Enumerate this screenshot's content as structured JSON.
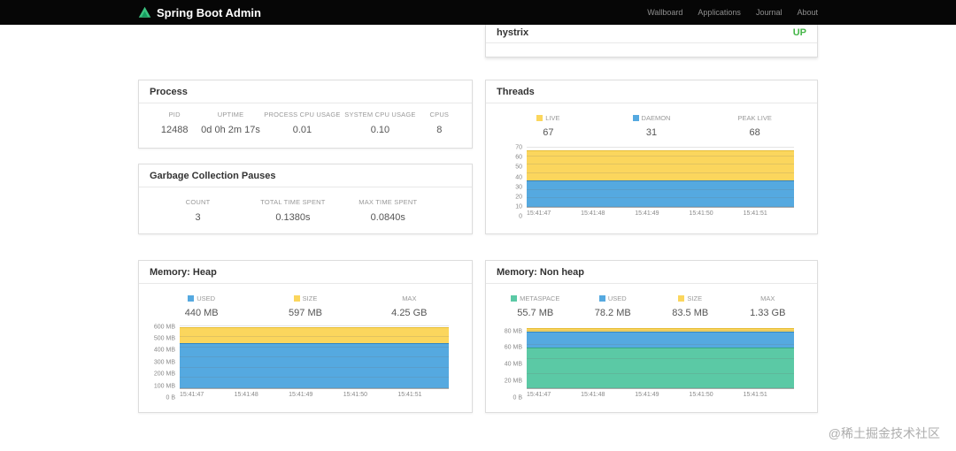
{
  "navbar": {
    "brand": "Spring Boot Admin",
    "links": [
      "Wallboard",
      "Applications",
      "Journal",
      "About"
    ]
  },
  "application_row": {
    "name": "hystrix",
    "status": "UP",
    "status_color": "#45b649"
  },
  "process": {
    "title": "Process",
    "stats": [
      {
        "label": "PID",
        "value": "12488"
      },
      {
        "label": "UPTIME",
        "value": "0d 0h 2m 17s"
      },
      {
        "label": "PROCESS CPU USAGE",
        "value": "0.01"
      },
      {
        "label": "SYSTEM CPU USAGE",
        "value": "0.10"
      },
      {
        "label": "CPUS",
        "value": "8"
      }
    ]
  },
  "gc": {
    "title": "Garbage Collection Pauses",
    "stats": [
      {
        "label": "COUNT",
        "value": "3"
      },
      {
        "label": "TOTAL TIME SPENT",
        "value": "0.1380s"
      },
      {
        "label": "MAX TIME SPENT",
        "value": "0.0840s"
      }
    ]
  },
  "threads": {
    "title": "Threads",
    "legend": [
      {
        "label": "LIVE",
        "value": "67",
        "color": "#fbd65d"
      },
      {
        "label": "DAEMON",
        "value": "31",
        "color": "#55a9e0"
      },
      {
        "label": "PEAK LIVE",
        "value": "68"
      }
    ]
  },
  "heap": {
    "title": "Memory: Heap",
    "legend": [
      {
        "label": "USED",
        "value": "440 MB",
        "color": "#55a9e0"
      },
      {
        "label": "SIZE",
        "value": "597 MB",
        "color": "#fbd65d"
      },
      {
        "label": "MAX",
        "value": "4.25 GB"
      }
    ]
  },
  "nonheap": {
    "title": "Memory: Non heap",
    "legend": [
      {
        "label": "METASPACE",
        "value": "55.7 MB",
        "color": "#5bc9a5"
      },
      {
        "label": "USED",
        "value": "78.2 MB",
        "color": "#55a9e0"
      },
      {
        "label": "SIZE",
        "value": "83.5 MB",
        "color": "#fbd65d"
      },
      {
        "label": "MAX",
        "value": "1.33 GB"
      }
    ]
  },
  "watermark": "@稀土掘金技术社区",
  "chart_data": [
    {
      "id": "threads",
      "type": "area",
      "title": "Threads",
      "x": [
        "15:41:47",
        "15:41:48",
        "15:41:49",
        "15:41:50",
        "15:41:51"
      ],
      "series": [
        {
          "name": "LIVE",
          "color": "#fbd65d",
          "line": "#e6bd37",
          "values": [
            67,
            67,
            67,
            67,
            67
          ]
        },
        {
          "name": "DAEMON",
          "color": "#55a9e0",
          "line": "#3186c2",
          "values": [
            31,
            31,
            31,
            31,
            31
          ]
        }
      ],
      "ylim": [
        0,
        72
      ],
      "yticks": [
        {
          "value": 0,
          "label": "0"
        },
        {
          "value": 10,
          "label": "10"
        },
        {
          "value": 20,
          "label": "20"
        },
        {
          "value": 30,
          "label": "30"
        },
        {
          "value": 40,
          "label": "40"
        },
        {
          "value": 50,
          "label": "50"
        },
        {
          "value": 60,
          "label": "60"
        },
        {
          "value": 70,
          "label": "70"
        }
      ],
      "grid": true,
      "legend_position": "top"
    },
    {
      "id": "heap",
      "type": "area",
      "title": "Memory: Heap",
      "x": [
        "15:41:47",
        "15:41:48",
        "15:41:49",
        "15:41:50",
        "15:41:51"
      ],
      "series": [
        {
          "name": "SIZE",
          "color": "#fbd65d",
          "line": "#e6bd37",
          "values": [
            597,
            597,
            597,
            597,
            597
          ]
        },
        {
          "name": "USED",
          "color": "#55a9e0",
          "line": "#3186c2",
          "values": [
            440,
            440,
            440,
            440,
            440
          ]
        }
      ],
      "ylim": [
        0,
        620
      ],
      "yticks": [
        {
          "value": 0,
          "label": "0 B"
        },
        {
          "value": 100,
          "label": "100 MB"
        },
        {
          "value": 200,
          "label": "200 MB"
        },
        {
          "value": 300,
          "label": "300 MB"
        },
        {
          "value": 400,
          "label": "400 MB"
        },
        {
          "value": 500,
          "label": "500 MB"
        },
        {
          "value": 600,
          "label": "600 MB"
        }
      ],
      "grid": true,
      "legend_position": "top"
    },
    {
      "id": "nonheap",
      "type": "area",
      "title": "Memory: Non heap",
      "x": [
        "15:41:47",
        "15:41:48",
        "15:41:49",
        "15:41:50",
        "15:41:51"
      ],
      "series": [
        {
          "name": "SIZE",
          "color": "#fbd65d",
          "line": "#e6bd37",
          "values": [
            83.5,
            83.5,
            83.5,
            83.5,
            83.5
          ]
        },
        {
          "name": "USED",
          "color": "#55a9e0",
          "line": "#3186c2",
          "values": [
            78.2,
            78.2,
            78.2,
            78.2,
            78.2
          ]
        },
        {
          "name": "METASPACE",
          "color": "#5bc9a5",
          "line": "#38a883",
          "values": [
            55.7,
            55.7,
            55.7,
            55.7,
            55.7
          ]
        }
      ],
      "ylim": [
        0,
        88
      ],
      "yticks": [
        {
          "value": 0,
          "label": "0 B"
        },
        {
          "value": 20,
          "label": "20 MB"
        },
        {
          "value": 40,
          "label": "40 MB"
        },
        {
          "value": 60,
          "label": "60 MB"
        },
        {
          "value": 80,
          "label": "80 MB"
        }
      ],
      "grid": true,
      "legend_position": "top"
    }
  ]
}
